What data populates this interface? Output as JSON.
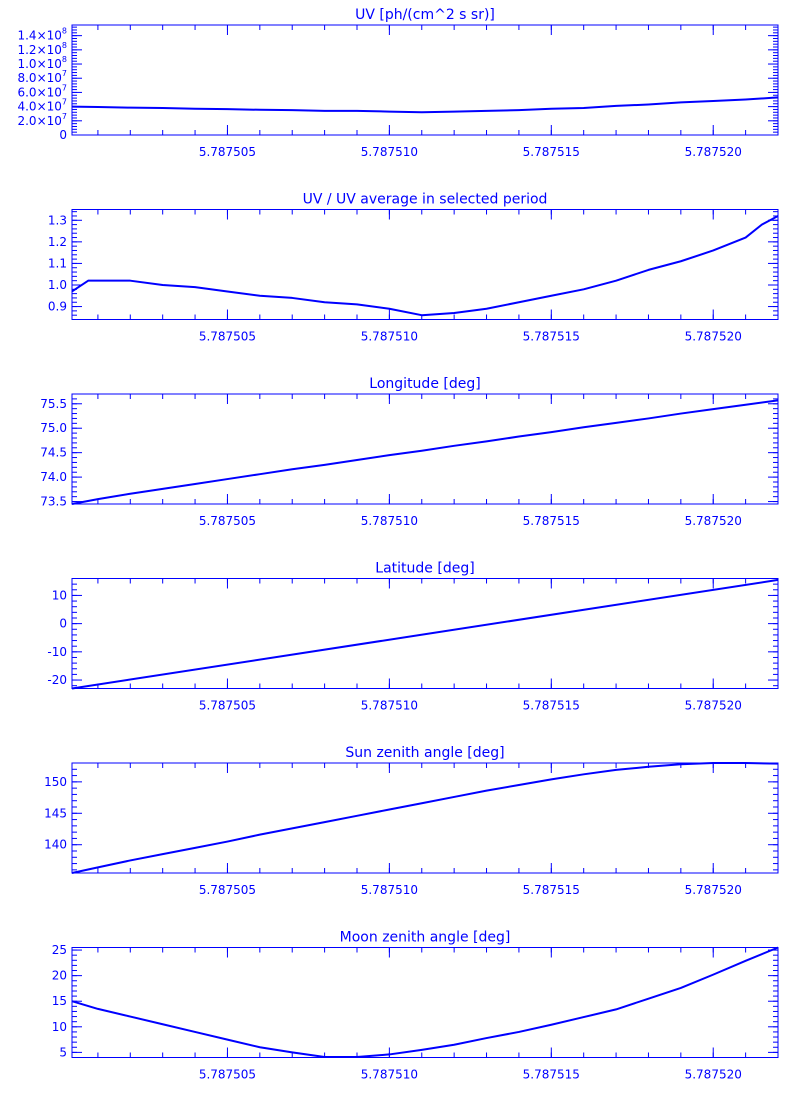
{
  "style": {
    "color": "#0000ff",
    "background": "#ffffff"
  },
  "chart_data": [
    {
      "type": "line",
      "title": "UV [ph/(cm^2 s sr)]",
      "xlabel": "",
      "ylabel": "",
      "xlim": [
        5.7875002,
        5.787522
      ],
      "ylim": [
        0,
        155000000.0
      ],
      "x_ticks": [
        5.787505,
        5.78751,
        5.787515,
        5.78752
      ],
      "x_ticklabels": [
        "5.787505",
        "5.787510",
        "5.787515",
        "5.787520"
      ],
      "y_ticks": [
        0,
        20000000.0,
        40000000.0,
        60000000.0,
        80000000.0,
        100000000.0,
        120000000.0,
        140000000.0
      ],
      "y_ticklabels": [
        {
          "text": "0"
        },
        {
          "text": "2.0×10",
          "exp": "7"
        },
        {
          "text": "4.0×10",
          "exp": "7"
        },
        {
          "text": "6.0×10",
          "exp": "7"
        },
        {
          "text": "8.0×10",
          "exp": "7"
        },
        {
          "text": "1.0×10",
          "exp": "8"
        },
        {
          "text": "1.2×10",
          "exp": "8"
        },
        {
          "text": "1.4×10",
          "exp": "8"
        }
      ],
      "grid": false,
      "series": [
        {
          "x": [
            5.7875002,
            5.787501,
            5.787502,
            5.787503,
            5.787504,
            5.787505,
            5.787506,
            5.787507,
            5.787508,
            5.787509,
            5.78751,
            5.787511,
            5.787512,
            5.787513,
            5.787514,
            5.787515,
            5.787516,
            5.787517,
            5.787518,
            5.787519,
            5.78752,
            5.787521,
            5.787522
          ],
          "y": [
            40000000.0,
            39500000.0,
            38500000.0,
            38000000.0,
            37000000.0,
            36500000.0,
            35500000.0,
            35000000.0,
            34000000.0,
            34000000.0,
            33000000.0,
            32000000.0,
            33000000.0,
            34000000.0,
            35000000.0,
            37000000.0,
            38000000.0,
            41000000.0,
            43000000.0,
            46000000.0,
            48000000.0,
            50000000.0,
            53000000.0
          ]
        }
      ]
    },
    {
      "type": "line",
      "title": "UV / UV average in selected period",
      "xlabel": "",
      "ylabel": "",
      "xlim": [
        5.7875002,
        5.787522
      ],
      "ylim": [
        0.84,
        1.35
      ],
      "x_ticks": [
        5.787505,
        5.78751,
        5.787515,
        5.78752
      ],
      "x_ticklabels": [
        "5.787505",
        "5.787510",
        "5.787515",
        "5.787520"
      ],
      "y_ticks": [
        0.9,
        1.0,
        1.1,
        1.2,
        1.3
      ],
      "y_ticklabels": [
        {
          "text": "0.9"
        },
        {
          "text": "1.0"
        },
        {
          "text": "1.1"
        },
        {
          "text": "1.2"
        },
        {
          "text": "1.3"
        }
      ],
      "grid": false,
      "series": [
        {
          "x": [
            5.7875002,
            5.7875007,
            5.787501,
            5.787502,
            5.787503,
            5.787504,
            5.787505,
            5.787506,
            5.787507,
            5.787508,
            5.787509,
            5.78751,
            5.787511,
            5.787512,
            5.787513,
            5.787514,
            5.787515,
            5.787516,
            5.787517,
            5.787518,
            5.787519,
            5.78752,
            5.787521,
            5.7875215,
            5.787522
          ],
          "y": [
            0.97,
            1.02,
            1.02,
            1.02,
            1.0,
            0.99,
            0.97,
            0.95,
            0.94,
            0.92,
            0.91,
            0.89,
            0.86,
            0.87,
            0.89,
            0.92,
            0.95,
            0.98,
            1.02,
            1.07,
            1.11,
            1.16,
            1.22,
            1.28,
            1.32
          ]
        }
      ]
    },
    {
      "type": "line",
      "title": "Longitude [deg]",
      "xlabel": "",
      "ylabel": "",
      "xlim": [
        5.7875002,
        5.787522
      ],
      "ylim": [
        73.45,
        75.7
      ],
      "x_ticks": [
        5.787505,
        5.78751,
        5.787515,
        5.78752
      ],
      "x_ticklabels": [
        "5.787505",
        "5.787510",
        "5.787515",
        "5.787520"
      ],
      "y_ticks": [
        73.5,
        74.0,
        74.5,
        75.0,
        75.5
      ],
      "y_ticklabels": [
        {
          "text": "73.5"
        },
        {
          "text": "74.0"
        },
        {
          "text": "74.5"
        },
        {
          "text": "75.0"
        },
        {
          "text": "75.5"
        }
      ],
      "grid": false,
      "series": [
        {
          "x": [
            5.7875002,
            5.787501,
            5.787502,
            5.787503,
            5.787504,
            5.787505,
            5.787506,
            5.787507,
            5.787508,
            5.787509,
            5.78751,
            5.787511,
            5.787512,
            5.787513,
            5.787514,
            5.787515,
            5.787516,
            5.787517,
            5.787518,
            5.787519,
            5.78752,
            5.787521,
            5.787522
          ],
          "y": [
            73.45,
            73.55,
            73.66,
            73.76,
            73.86,
            73.96,
            74.06,
            74.16,
            74.25,
            74.35,
            74.45,
            74.54,
            74.64,
            74.73,
            74.83,
            74.92,
            75.02,
            75.11,
            75.2,
            75.3,
            75.39,
            75.48,
            75.57
          ]
        }
      ]
    },
    {
      "type": "line",
      "title": "Latitude [deg]",
      "xlabel": "",
      "ylabel": "",
      "xlim": [
        5.7875002,
        5.787522
      ],
      "ylim": [
        -23,
        16
      ],
      "x_ticks": [
        5.787505,
        5.78751,
        5.787515,
        5.78752
      ],
      "x_ticklabels": [
        "5.787505",
        "5.787510",
        "5.787515",
        "5.787520"
      ],
      "y_ticks": [
        -20,
        -10,
        0,
        10
      ],
      "y_ticklabels": [
        {
          "text": "-20"
        },
        {
          "text": "-10"
        },
        {
          "text": "0"
        },
        {
          "text": "10"
        }
      ],
      "grid": false,
      "series": [
        {
          "x": [
            5.7875002,
            5.787522
          ],
          "y": [
            -23,
            15.5
          ]
        }
      ]
    },
    {
      "type": "line",
      "title": "Sun zenith angle [deg]",
      "xlabel": "",
      "ylabel": "",
      "xlim": [
        5.7875002,
        5.787522
      ],
      "ylim": [
        135.5,
        153
      ],
      "x_ticks": [
        5.787505,
        5.78751,
        5.787515,
        5.78752
      ],
      "x_ticklabels": [
        "5.787505",
        "5.787510",
        "5.787515",
        "5.787520"
      ],
      "y_ticks": [
        140,
        145,
        150
      ],
      "y_ticklabels": [
        {
          "text": "140"
        },
        {
          "text": "145"
        },
        {
          "text": "150"
        }
      ],
      "grid": false,
      "series": [
        {
          "x": [
            5.7875002,
            5.787501,
            5.787502,
            5.787503,
            5.787504,
            5.787505,
            5.787506,
            5.787507,
            5.787508,
            5.787509,
            5.78751,
            5.787511,
            5.787512,
            5.787513,
            5.787514,
            5.787515,
            5.787516,
            5.787517,
            5.787518,
            5.787519,
            5.78752,
            5.787521,
            5.787522
          ],
          "y": [
            135.5,
            136.4,
            137.5,
            138.5,
            139.5,
            140.5,
            141.6,
            142.6,
            143.6,
            144.6,
            145.6,
            146.6,
            147.6,
            148.6,
            149.5,
            150.4,
            151.2,
            151.9,
            152.4,
            152.8,
            153.0,
            153.0,
            152.9
          ]
        }
      ]
    },
    {
      "type": "line",
      "title": "Moon zenith angle [deg]",
      "xlabel": "",
      "ylabel": "",
      "xlim": [
        5.7875002,
        5.787522
      ],
      "ylim": [
        4,
        25.5
      ],
      "x_ticks": [
        5.787505,
        5.78751,
        5.787515,
        5.78752
      ],
      "x_ticklabels": [
        "5.787505",
        "5.787510",
        "5.787515",
        "5.787520"
      ],
      "y_ticks": [
        5,
        10,
        15,
        20,
        25
      ],
      "y_ticklabels": [
        {
          "text": "5"
        },
        {
          "text": "10"
        },
        {
          "text": "15"
        },
        {
          "text": "20"
        },
        {
          "text": "25"
        }
      ],
      "grid": false,
      "series": [
        {
          "x": [
            5.7875002,
            5.787501,
            5.787502,
            5.787503,
            5.787504,
            5.787505,
            5.787506,
            5.787507,
            5.787508,
            5.787509,
            5.78751,
            5.787511,
            5.787512,
            5.787513,
            5.787514,
            5.787515,
            5.787516,
            5.787517,
            5.787518,
            5.787519,
            5.78752,
            5.787521,
            5.787522
          ],
          "y": [
            15.0,
            13.5,
            12.0,
            10.5,
            9.0,
            7.5,
            6.0,
            5.0,
            4.1,
            4.1,
            4.6,
            5.5,
            6.5,
            7.8,
            9.0,
            10.4,
            11.9,
            13.4,
            15.5,
            17.6,
            20.2,
            22.9,
            25.5
          ]
        }
      ]
    }
  ]
}
